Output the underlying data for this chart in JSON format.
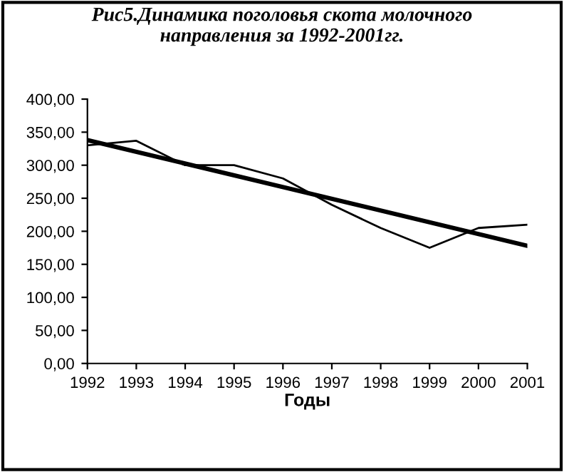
{
  "chart_data": {
    "type": "line",
    "title": "Рис5.Динамика поголовья скота молочного\nнаправления за 1992-2001гг.",
    "xlabel": "Годы",
    "x": [
      1992,
      1993,
      1994,
      1995,
      1996,
      1997,
      1998,
      1999,
      2000,
      2001
    ],
    "series": [
      {
        "color": "#000000",
        "values": [
          330,
          337,
          300,
          300,
          280,
          240,
          205,
          175,
          205,
          210
        ]
      },
      {
        "type": "line",
        "color": "#000000",
        "x": [
          1992,
          2001
        ],
        "values": [
          338,
          178
        ]
      }
    ],
    "xlim": [
      1992,
      2001
    ],
    "xticks": [
      1992,
      1993,
      1994,
      1995,
      1996,
      1997,
      1998,
      1999,
      2000,
      2001
    ],
    "ylim": [
      0,
      400
    ],
    "yticks": [
      {
        "value": 0,
        "label": "0,00"
      },
      {
        "value": 50,
        "label": "50,00"
      },
      {
        "value": 100,
        "label": "100,00"
      },
      {
        "value": 150,
        "label": "150,00"
      },
      {
        "value": 200,
        "label": "200,00"
      },
      {
        "value": 250,
        "label": "250,00"
      },
      {
        "value": 300,
        "label": "300,00"
      },
      {
        "value": 350,
        "label": "350,00"
      },
      {
        "value": 400,
        "label": "400,00"
      }
    ],
    "grid": false,
    "legend": false
  }
}
